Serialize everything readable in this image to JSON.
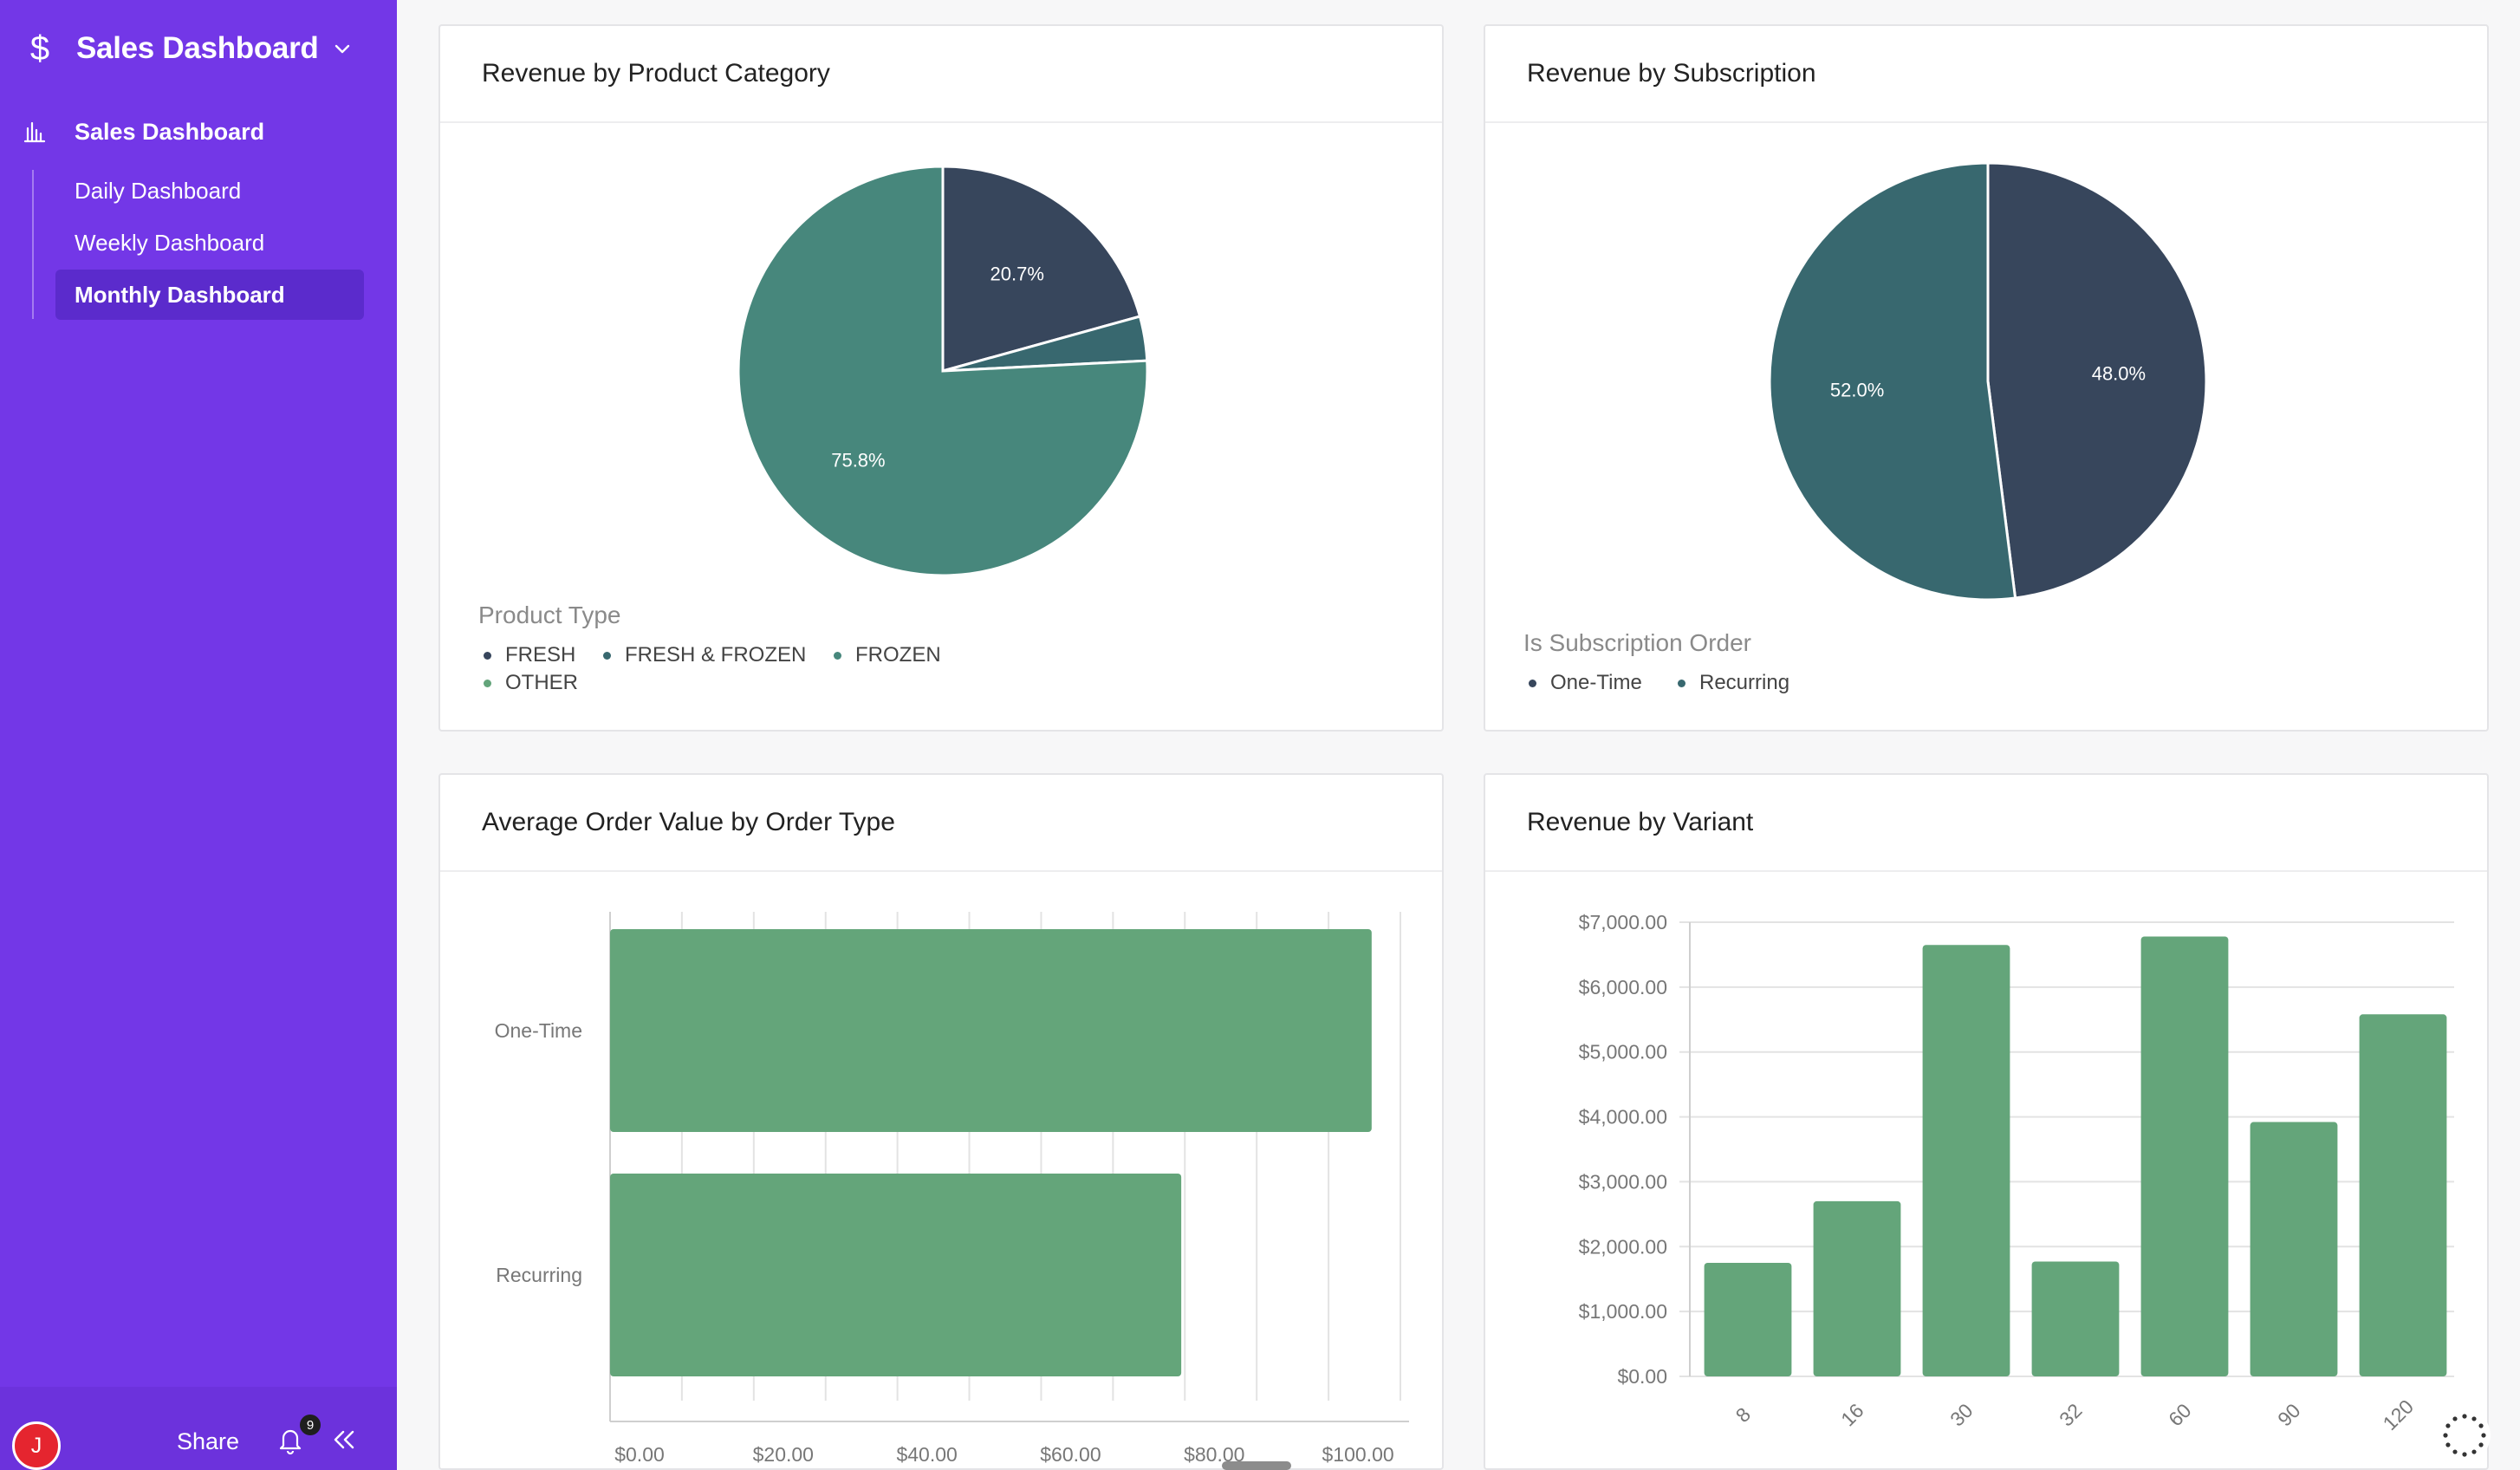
{
  "app": {
    "title": "Sales Dashboard",
    "brand_icon": "dollar-icon"
  },
  "nav": {
    "parent_label": "Sales Dashboard",
    "items": [
      {
        "label": "Daily Dashboard",
        "active": false
      },
      {
        "label": "Weekly Dashboard",
        "active": false
      },
      {
        "label": "Monthly Dashboard",
        "active": true
      }
    ]
  },
  "footer": {
    "avatar_initial": "J",
    "share_label": "Share",
    "notification_count": "9"
  },
  "colors": {
    "sidebar": "#7337e7",
    "fresh": "#37465c",
    "fresh_frozen": "#38686f",
    "frozen": "#47877c",
    "other": "#63a47a",
    "bar": "#64a57a"
  },
  "cards": {
    "product_category": {
      "title": "Revenue by Product Category"
    },
    "subscription": {
      "title": "Revenue by Subscription"
    },
    "order_type": {
      "title": "Average Order Value by Order Type"
    },
    "variant": {
      "title": "Revenue by Variant"
    }
  },
  "chart_data": [
    {
      "type": "pie",
      "title": "Revenue by Product Category",
      "legend_title": "Product Type",
      "slices": [
        {
          "label": "FRESH",
          "value": 20.7,
          "data_label": "20.7%",
          "color": "#37465c"
        },
        {
          "label": "FRESH & FROZEN",
          "value": 3.5,
          "data_label": "",
          "color": "#38686f"
        },
        {
          "label": "FROZEN",
          "value": 75.8,
          "data_label": "75.8%",
          "color": "#47877c"
        },
        {
          "label": "OTHER",
          "value": 0.0,
          "data_label": "",
          "color": "#63a47a"
        }
      ]
    },
    {
      "type": "pie",
      "title": "Revenue by Subscription",
      "legend_title": "Is Subscription Order",
      "slices": [
        {
          "label": "One-Time",
          "value": 48.0,
          "data_label": "48.0%",
          "color": "#37465c"
        },
        {
          "label": "Recurring",
          "value": 52.0,
          "data_label": "52.0%",
          "color": "#38686f"
        }
      ]
    },
    {
      "type": "bar",
      "orientation": "horizontal",
      "title": "Average Order Value by Order Type",
      "categories": [
        "One-Time",
        "Recurring"
      ],
      "values": [
        106,
        79.5
      ],
      "xlim": [
        0,
        110
      ],
      "tick_labels": [
        "$0.00",
        "$20.00",
        "$40.00",
        "$60.00",
        "$80.00",
        "$100.00"
      ],
      "tick_values": [
        0,
        20,
        40,
        60,
        80,
        100
      ],
      "grid": true
    },
    {
      "type": "bar",
      "title": "Revenue by Variant",
      "categories": [
        "8",
        "16",
        "30",
        "32",
        "60",
        "90",
        "120"
      ],
      "values": [
        1750,
        2700,
        6650,
        1770,
        6780,
        3920,
        5580
      ],
      "ylim": [
        0,
        7000
      ],
      "tick_labels": [
        "$0.00",
        "$1,000.00",
        "$2,000.00",
        "$3,000.00",
        "$4,000.00",
        "$5,000.00",
        "$6,000.00",
        "$7,000.00"
      ],
      "tick_values": [
        0,
        1000,
        2000,
        3000,
        4000,
        5000,
        6000,
        7000
      ],
      "grid": true
    }
  ]
}
